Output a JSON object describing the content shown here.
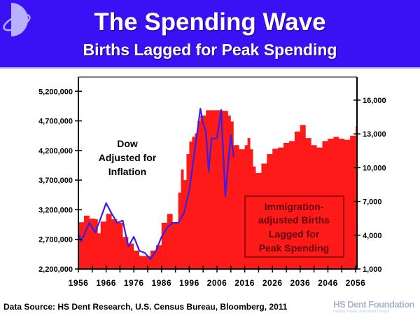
{
  "header": {
    "title": "The Spending Wave",
    "subtitle": "Births Lagged for Peak Spending"
  },
  "footer": {
    "source": "Data Source: HS Dent Research, U.S. Census Bureau, Bloomberg, 2011",
    "brand_name": "HS Dent Foundation",
    "brand_tagline": "Helping People Understand Change"
  },
  "colors": {
    "header_bg": "#3a10f5",
    "births_fill": "#ff1a1a",
    "dow_line": "#3b1ee6"
  },
  "chart_data": {
    "type": "area",
    "title": "The Spending Wave",
    "subtitle": "Births Lagged for Peak Spending",
    "x_ticks": [
      "1956",
      "1966",
      "1976",
      "1986",
      "1996",
      "2006",
      "2016",
      "2026",
      "2036",
      "2046",
      "2056"
    ],
    "xlim": [
      1956,
      2056.5
    ],
    "y_left": {
      "ticks": [
        "2,200,000",
        "2,700,000",
        "3,200,000",
        "3,700,000",
        "4,200,000",
        "4,700,000",
        "5,200,000"
      ],
      "ylim": [
        2200000,
        5440000
      ]
    },
    "y_right": {
      "ticks": [
        "1,000",
        "4,000",
        "7,000",
        "10,000",
        "13,000",
        "16,000"
      ],
      "ylim": [
        1000,
        18050
      ]
    },
    "annotations": {
      "dow": [
        "Dow",
        "Adjusted for",
        "Inflation"
      ],
      "births": [
        "Immigration-",
        "adjusted Births",
        "Lagged for",
        "Peak Spending"
      ]
    },
    "series": [
      {
        "name": "Immigration-adjusted Births Lagged for Peak Spending",
        "axis": "left",
        "style": "step-area",
        "x": [
          1956,
          1958,
          1960,
          1962,
          1963,
          1964,
          1966,
          1968,
          1970,
          1972,
          1974,
          1976,
          1978,
          1980,
          1982,
          1984,
          1986,
          1988,
          1990,
          1992,
          1993,
          1994,
          1995,
          1996,
          1997,
          1998,
          1999,
          2000,
          2002,
          2003,
          2008,
          2010,
          2011,
          2012,
          2014,
          2016,
          2017,
          2018,
          2019,
          2020,
          2022,
          2024,
          2026,
          2028,
          2030,
          2032,
          2034,
          2036,
          2038,
          2040,
          2042,
          2044,
          2046,
          2048,
          2050,
          2052,
          2054,
          2056
        ],
        "values": [
          2990000,
          3100000,
          3050000,
          3040000,
          2800000,
          3000000,
          3130000,
          3040000,
          2980000,
          2740000,
          2630000,
          2510000,
          2420000,
          2420000,
          2510000,
          2600000,
          2980000,
          3130000,
          2980000,
          3490000,
          3880000,
          3700000,
          4140000,
          4350000,
          4430000,
          4490000,
          4700000,
          4790000,
          4880000,
          4880000,
          4870000,
          4790000,
          4690000,
          4290000,
          4220000,
          4290000,
          4410000,
          4220000,
          3930000,
          3820000,
          3980000,
          4140000,
          4230000,
          4250000,
          4330000,
          4360000,
          4520000,
          4630000,
          4410000,
          4290000,
          4250000,
          4360000,
          4400000,
          4430000,
          4400000,
          4380000,
          4450000,
          4610000
        ]
      },
      {
        "name": "Dow Adjusted for Inflation",
        "axis": "right",
        "style": "line",
        "x": [
          1956,
          1957,
          1958,
          1960,
          1962,
          1964,
          1966,
          1968,
          1970,
          1972,
          1974,
          1976,
          1978,
          1980,
          1982,
          1984,
          1986,
          1988,
          1990,
          1992,
          1994,
          1996,
          1998,
          2000,
          2001,
          2002,
          2003,
          2004,
          2006,
          2007.5,
          2009,
          2010,
          2011,
          2012
        ],
        "values": [
          4240,
          3430,
          4000,
          5100,
          4240,
          5480,
          6850,
          5920,
          5100,
          5300,
          3000,
          3860,
          2620,
          2420,
          1870,
          2620,
          3860,
          4670,
          5100,
          5100,
          5920,
          7970,
          11520,
          15250,
          13900,
          13200,
          9650,
          12580,
          12600,
          15130,
          7470,
          10280,
          12900,
          10900
        ]
      }
    ]
  }
}
